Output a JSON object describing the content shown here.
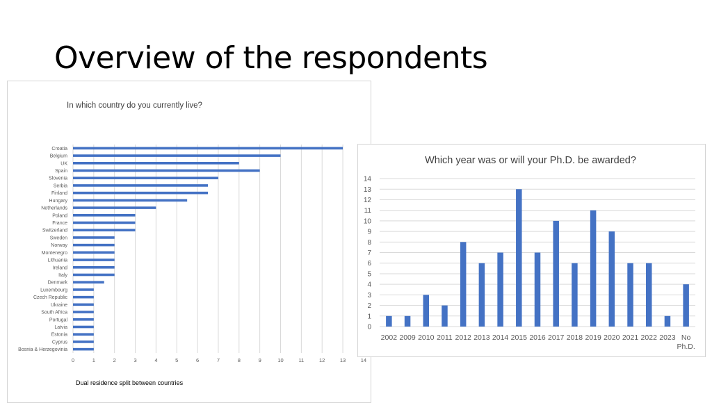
{
  "slide": {
    "title": "Overview of the respondents"
  },
  "colors": {
    "bar": "#4472c4",
    "grid": "#d9d9d9",
    "axis_text": "#595959",
    "title_text": "#404040"
  },
  "chart_data": [
    {
      "type": "bar",
      "orientation": "horizontal",
      "title": "In which country do you currently live?",
      "categories": [
        "Croatia",
        "Belgium",
        "UK",
        "Spain",
        "Slovenia",
        "Serbia",
        "Finland",
        "Hungary",
        "Netherlands",
        "Poland",
        "France",
        "Switzerland",
        "Sweden",
        "Norway",
        "Montenegro",
        "Lithuania",
        "Ireland",
        "Italy",
        "Denmark",
        "Luxembourg",
        "Czech Republic",
        "Ukraine",
        "South Africa",
        "Portugal",
        "Latvia",
        "Estonia",
        "Cyprus",
        "Bosnia & Herzegovinia"
      ],
      "values": [
        13,
        10,
        8,
        9,
        7,
        6.5,
        6.5,
        5.5,
        4,
        3,
        3,
        3,
        2,
        2,
        2,
        2,
        2,
        2,
        1.5,
        1,
        1,
        1,
        1,
        1,
        1,
        1,
        1,
        1
      ],
      "xlim": [
        0,
        14
      ],
      "xticks": [
        "0",
        "1",
        "2",
        "3",
        "4",
        "5",
        "6",
        "7",
        "8",
        "9",
        "10",
        "11",
        "12",
        "13",
        "14"
      ],
      "grid": true,
      "annotation": "Dual residence split between countries"
    },
    {
      "type": "bar",
      "orientation": "vertical",
      "title": "Which year was or will your Ph.D. be awarded?",
      "categories": [
        "2002",
        "2009",
        "2010",
        "2011",
        "2012",
        "2013",
        "2014",
        "2015",
        "2016",
        "2017",
        "2018",
        "2019",
        "2020",
        "2021",
        "2022",
        "2023",
        "No Ph.D."
      ],
      "values": [
        1,
        1,
        3,
        2,
        8,
        6,
        7,
        13,
        7,
        10,
        6,
        11,
        9,
        6,
        6,
        1,
        4
      ],
      "ylim": [
        0,
        14
      ],
      "yticks": [
        "0",
        "1",
        "2",
        "3",
        "4",
        "5",
        "6",
        "7",
        "8",
        "9",
        "10",
        "11",
        "12",
        "13",
        "14"
      ],
      "grid": true
    }
  ]
}
